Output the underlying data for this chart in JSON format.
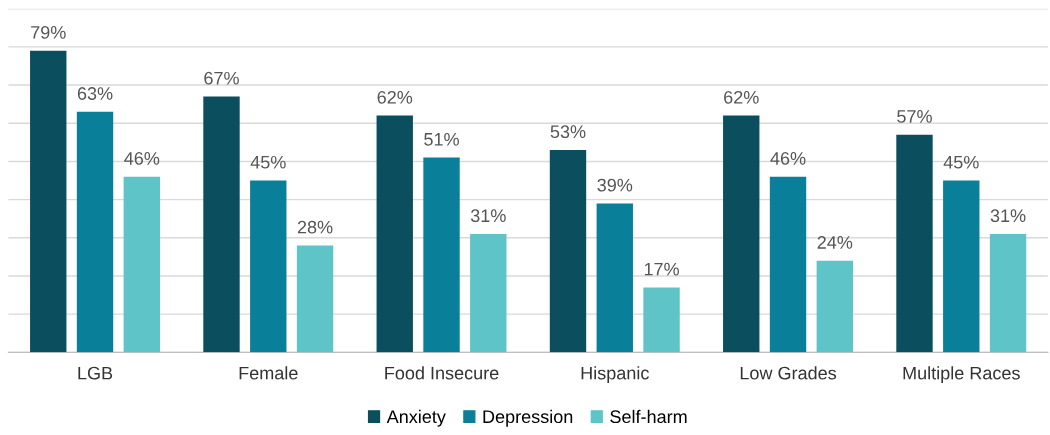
{
  "chart_data": {
    "type": "bar",
    "categories": [
      "LGB",
      "Female",
      "Food Insecure",
      "Hispanic",
      "Low Grades",
      "Multiple Races"
    ],
    "series": [
      {
        "name": "Anxiety",
        "color": "#0b4f5e",
        "values": [
          79,
          67,
          62,
          53,
          62,
          57
        ],
        "value_labels": [
          "79%",
          "67%",
          "62%",
          "53%",
          "62%",
          "57%"
        ]
      },
      {
        "name": "Depression",
        "color": "#0a7f99",
        "values": [
          63,
          45,
          51,
          39,
          46,
          45
        ],
        "value_labels": [
          "63%",
          "45%",
          "51%",
          "39%",
          "46%",
          "45%"
        ]
      },
      {
        "name": "Self-harm",
        "color": "#5ec4c8",
        "values": [
          46,
          28,
          31,
          17,
          24,
          31
        ],
        "value_labels": [
          "46%",
          "28%",
          "31%",
          "17%",
          "24%",
          "31%"
        ]
      }
    ],
    "ylim": [
      0,
      90
    ],
    "yticks": [
      {
        "value": 0,
        "label": null
      },
      {
        "value": 10,
        "label": null
      },
      {
        "value": 20,
        "label": null
      },
      {
        "value": 30,
        "label": null
      },
      {
        "value": 40,
        "label": null
      },
      {
        "value": 50,
        "label": null
      },
      {
        "value": 60,
        "label": null
      },
      {
        "value": 70,
        "label": null
      },
      {
        "value": 80,
        "label": null
      },
      {
        "value": 90,
        "label": null
      }
    ],
    "grid": "y",
    "legend": "bottom"
  }
}
